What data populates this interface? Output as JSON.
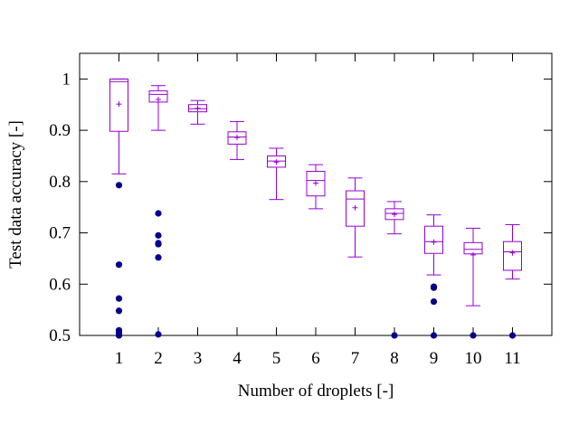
{
  "chart_data": {
    "type": "box",
    "title": "",
    "xlabel": "Number of droplets [-]",
    "ylabel": "Test data accuracy [-]",
    "xlim": [
      0,
      12
    ],
    "ylim": [
      0.5,
      1.05
    ],
    "x_ticks": [
      "1",
      "2",
      "3",
      "4",
      "5",
      "6",
      "7",
      "8",
      "9",
      "10",
      "11"
    ],
    "y_ticks": [
      "0.5",
      "0.6",
      "0.7",
      "0.8",
      "0.9",
      "1"
    ],
    "grid": false,
    "legend": "none",
    "box_color": "#9400d3",
    "outlier_color": "#00008b",
    "boxes": [
      {
        "x": 1,
        "whisker_low": 0.815,
        "q1": 0.898,
        "median": 0.995,
        "q3": 1.0,
        "whisker_high": 1.0,
        "mean": 0.951,
        "outliers": [
          0.793,
          0.638,
          0.572,
          0.548,
          0.51,
          0.505,
          0.5
        ]
      },
      {
        "x": 2,
        "whisker_low": 0.9,
        "q1": 0.955,
        "median": 0.97,
        "q3": 0.977,
        "whisker_high": 0.987,
        "mean": 0.96,
        "outliers": [
          0.738,
          0.695,
          0.68,
          0.678,
          0.652,
          0.502
        ]
      },
      {
        "x": 3,
        "whisker_low": 0.912,
        "q1": 0.936,
        "median": 0.942,
        "q3": 0.95,
        "whisker_high": 0.958,
        "mean": 0.943,
        "outliers": []
      },
      {
        "x": 4,
        "whisker_low": 0.843,
        "q1": 0.873,
        "median": 0.887,
        "q3": 0.897,
        "whisker_high": 0.917,
        "mean": 0.886,
        "outliers": []
      },
      {
        "x": 5,
        "whisker_low": 0.765,
        "q1": 0.828,
        "median": 0.84,
        "q3": 0.85,
        "whisker_high": 0.865,
        "mean": 0.838,
        "outliers": []
      },
      {
        "x": 6,
        "whisker_low": 0.747,
        "q1": 0.772,
        "median": 0.802,
        "q3": 0.82,
        "whisker_high": 0.833,
        "mean": 0.797,
        "outliers": []
      },
      {
        "x": 7,
        "whisker_low": 0.653,
        "q1": 0.713,
        "median": 0.766,
        "q3": 0.782,
        "whisker_high": 0.807,
        "mean": 0.749,
        "outliers": []
      },
      {
        "x": 8,
        "whisker_low": 0.698,
        "q1": 0.726,
        "median": 0.738,
        "q3": 0.747,
        "whisker_high": 0.761,
        "mean": 0.736,
        "outliers": [
          0.5
        ]
      },
      {
        "x": 9,
        "whisker_low": 0.618,
        "q1": 0.66,
        "median": 0.683,
        "q3": 0.713,
        "whisker_high": 0.735,
        "mean": 0.682,
        "outliers": [
          0.595,
          0.593,
          0.566,
          0.5
        ]
      },
      {
        "x": 10,
        "whisker_low": 0.558,
        "q1": 0.659,
        "median": 0.668,
        "q3": 0.681,
        "whisker_high": 0.709,
        "mean": 0.657,
        "outliers": [
          0.5
        ]
      },
      {
        "x": 11,
        "whisker_low": 0.61,
        "q1": 0.627,
        "median": 0.663,
        "q3": 0.683,
        "whisker_high": 0.716,
        "mean": 0.661,
        "outliers": [
          0.5
        ]
      }
    ]
  }
}
